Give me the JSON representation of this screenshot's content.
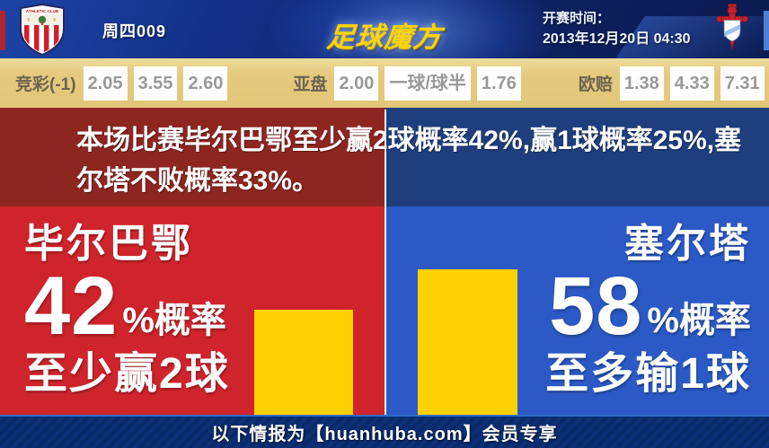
{
  "header": {
    "match_code": "周四009",
    "logo_text": "足球魔方",
    "kickoff_label": "开赛时间：",
    "kickoff_time": "2013年12月20日 04:30",
    "home_badge": "athletic-club-crest",
    "away_badge": "celta-vigo-crest"
  },
  "odds_bar": {
    "groups": [
      {
        "label": "竞彩(-1)",
        "values": [
          "2.05",
          "3.55",
          "2.60"
        ]
      },
      {
        "label": "亚盘",
        "values": [
          "2.00",
          "一球/球半",
          "1.76"
        ]
      },
      {
        "label": "欧赔",
        "values": [
          "1.38",
          "4.33",
          "7.31"
        ]
      }
    ]
  },
  "summary": {
    "text": "本场比赛毕尔巴鄂至少赢2球概率42%,赢1球概率25%,塞尔塔不败概率33%。"
  },
  "comparison": {
    "left": {
      "team": "毕尔巴鄂",
      "percent": "42",
      "percent_suffix": "%概率",
      "outcome": "至少赢2球",
      "panel_color": "#d0242c"
    },
    "right": {
      "team": "塞尔塔",
      "percent": "58",
      "percent_suffix": "%概率",
      "outcome": "至多输1球",
      "panel_color": "#2b5ac7"
    },
    "bar_color": "#ffd200"
  },
  "footer": {
    "text": "以下情报为【huanhuba.com】会员专享"
  },
  "chart_data": {
    "type": "bar",
    "categories": [
      "毕尔巴鄂 至少赢2球",
      "塞尔塔 至多输1球"
    ],
    "values": [
      42,
      58
    ],
    "unit": "%",
    "title": "本场比赛毕尔巴鄂至少赢2球概率42%,赢1球概率25%,塞尔塔不败概率33%。",
    "bar_color": "#ffd200",
    "ylim": [
      0,
      100
    ],
    "notes": "竞彩(-1): 2.05/3.55/2.60; 亚盘: 2.00 一球/球半 1.76; 欧赔: 1.38/4.33/7.31"
  }
}
